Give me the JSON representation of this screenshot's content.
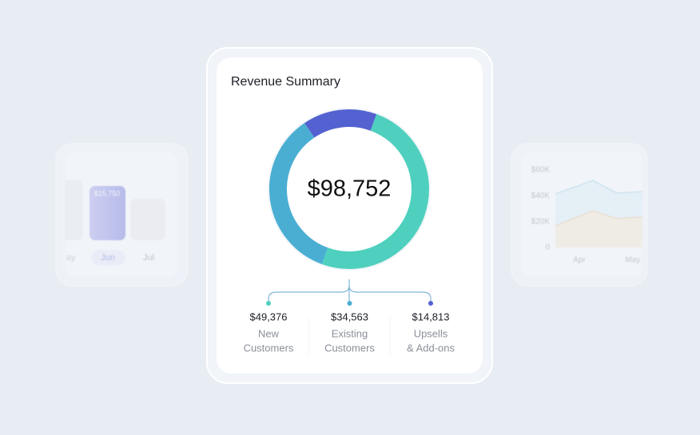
{
  "card": {
    "title": "Revenue Summary",
    "total": "$98,752",
    "segments": [
      {
        "amount": {
          "value": 49376,
          "label": "$49,376"
        },
        "label": [
          "New",
          "Customers"
        ],
        "color": "#4fd0be"
      },
      {
        "amount": {
          "value": 34563,
          "label": "$34,563"
        },
        "label": [
          "Existing",
          "Customers"
        ],
        "color": "#4aaed3"
      },
      {
        "amount": {
          "value": 14813,
          "label": "$14,813"
        },
        "label": [
          "Upsells",
          "& Add-ons"
        ],
        "color": "#5362d0"
      }
    ]
  },
  "bar_card": {
    "bar_label": "$15,750",
    "months": [
      "May",
      "Jun",
      "Jul"
    ]
  },
  "line_card": {
    "yticks": [
      {
        "value": 60000,
        "label": "$60K"
      },
      {
        "value": 40000,
        "label": "$40K"
      },
      {
        "value": 20000,
        "label": "$20K"
      },
      0
    ],
    "ylim": [
      0,
      60000
    ],
    "months": [
      "Apr",
      "May"
    ]
  }
}
